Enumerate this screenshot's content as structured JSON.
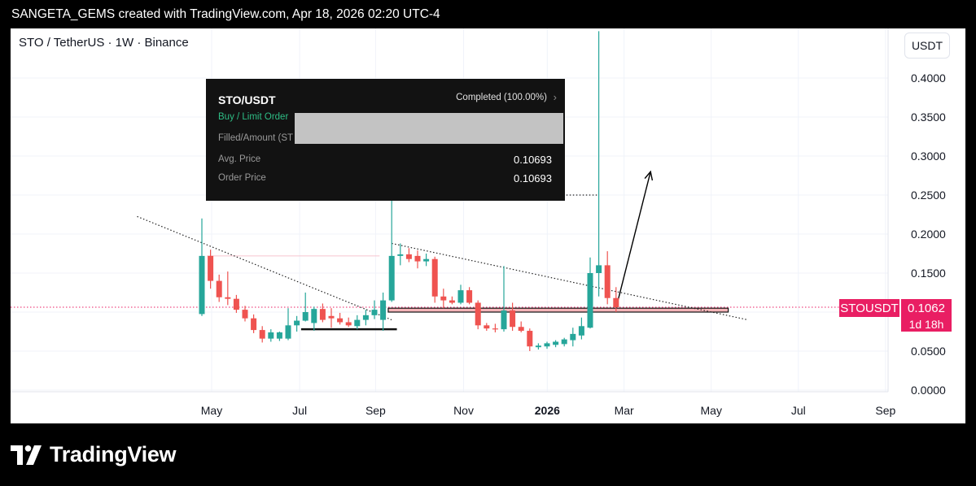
{
  "header": {
    "caption": "SANGETA_GEMS created with TradingView.com, Apr 18, 2026 02:20 UTC-4"
  },
  "chart": {
    "symbol_title": "STO / TetherUS · 1W · Binance",
    "currency_button": "USDT",
    "ticker_tag": "STOUSDT",
    "price_tag": "0.1062",
    "countdown": "1d 18h"
  },
  "order_panel": {
    "pair": "STO/USDT",
    "status": "Completed (100.00%)",
    "side": "Buy / Limit Order",
    "filled_label": "Filled/Amount (ST",
    "avg_price_label": "Avg. Price",
    "avg_price_value": "0.10693",
    "order_price_label": "Order Price",
    "order_price_value": "0.10693"
  },
  "branding": {
    "logo_text": "TradingView",
    "logo_icon": "tradingview-logo-icon"
  },
  "colors": {
    "up": "#26a69a",
    "down": "#ef5350",
    "accent": "#e91e63",
    "support_zone": "#f4b4b8",
    "background": "#ffffff"
  },
  "chart_data": {
    "type": "candlestick",
    "interval": "1W",
    "ylim": [
      0,
      0.4
    ],
    "y_ticks": [
      "0.0000",
      "0.0500",
      "0.1000",
      "0.1500",
      "0.2000",
      "0.2500",
      "0.3000",
      "0.3500",
      "0.4000"
    ],
    "x_ticks": [
      "May",
      "Jul",
      "Sep",
      "Nov",
      "2026",
      "Mar",
      "May",
      "Jul",
      "Sep"
    ],
    "last_price": 0.1062,
    "grid": true,
    "candles": [
      {
        "o": 0.0975,
        "h": 0.22,
        "l": 0.095,
        "c": 0.172
      },
      {
        "o": 0.172,
        "h": 0.18,
        "l": 0.13,
        "c": 0.14
      },
      {
        "o": 0.14,
        "h": 0.148,
        "l": 0.113,
        "c": 0.119
      },
      {
        "o": 0.119,
        "h": 0.152,
        "l": 0.109,
        "c": 0.117
      },
      {
        "o": 0.117,
        "h": 0.122,
        "l": 0.099,
        "c": 0.103
      },
      {
        "o": 0.103,
        "h": 0.108,
        "l": 0.088,
        "c": 0.092
      },
      {
        "o": 0.092,
        "h": 0.097,
        "l": 0.073,
        "c": 0.077
      },
      {
        "o": 0.077,
        "h": 0.082,
        "l": 0.061,
        "c": 0.066
      },
      {
        "o": 0.066,
        "h": 0.078,
        "l": 0.062,
        "c": 0.074
      },
      {
        "o": 0.066,
        "h": 0.075,
        "l": 0.063,
        "c": 0.074
      },
      {
        "o": 0.066,
        "h": 0.105,
        "l": 0.064,
        "c": 0.083
      },
      {
        "o": 0.083,
        "h": 0.095,
        "l": 0.075,
        "c": 0.089
      },
      {
        "o": 0.089,
        "h": 0.125,
        "l": 0.088,
        "c": 0.1
      },
      {
        "o": 0.086,
        "h": 0.107,
        "l": 0.076,
        "c": 0.104
      },
      {
        "o": 0.104,
        "h": 0.111,
        "l": 0.087,
        "c": 0.09
      },
      {
        "o": 0.095,
        "h": 0.105,
        "l": 0.08,
        "c": 0.092
      },
      {
        "o": 0.092,
        "h": 0.099,
        "l": 0.084,
        "c": 0.087
      },
      {
        "o": 0.087,
        "h": 0.093,
        "l": 0.081,
        "c": 0.083
      },
      {
        "o": 0.082,
        "h": 0.096,
        "l": 0.078,
        "c": 0.09
      },
      {
        "o": 0.09,
        "h": 0.103,
        "l": 0.083,
        "c": 0.096
      },
      {
        "o": 0.096,
        "h": 0.115,
        "l": 0.091,
        "c": 0.103
      },
      {
        "o": 0.09,
        "h": 0.125,
        "l": 0.076,
        "c": 0.115
      },
      {
        "o": 0.115,
        "h": 0.25,
        "l": 0.113,
        "c": 0.172
      },
      {
        "o": 0.172,
        "h": 0.188,
        "l": 0.16,
        "c": 0.174
      },
      {
        "o": 0.174,
        "h": 0.182,
        "l": 0.164,
        "c": 0.168
      },
      {
        "o": 0.172,
        "h": 0.179,
        "l": 0.156,
        "c": 0.165
      },
      {
        "o": 0.165,
        "h": 0.175,
        "l": 0.159,
        "c": 0.168
      },
      {
        "o": 0.168,
        "h": 0.171,
        "l": 0.112,
        "c": 0.12
      },
      {
        "o": 0.12,
        "h": 0.13,
        "l": 0.105,
        "c": 0.115
      },
      {
        "o": 0.115,
        "h": 0.12,
        "l": 0.11,
        "c": 0.112
      },
      {
        "o": 0.112,
        "h": 0.135,
        "l": 0.11,
        "c": 0.128
      },
      {
        "o": 0.128,
        "h": 0.132,
        "l": 0.11,
        "c": 0.112
      },
      {
        "o": 0.112,
        "h": 0.115,
        "l": 0.078,
        "c": 0.083
      },
      {
        "o": 0.083,
        "h": 0.086,
        "l": 0.076,
        "c": 0.079
      },
      {
        "o": 0.079,
        "h": 0.085,
        "l": 0.074,
        "c": 0.078
      },
      {
        "o": 0.078,
        "h": 0.159,
        "l": 0.075,
        "c": 0.102
      },
      {
        "o": 0.102,
        "h": 0.112,
        "l": 0.076,
        "c": 0.081
      },
      {
        "o": 0.081,
        "h": 0.088,
        "l": 0.074,
        "c": 0.076
      },
      {
        "o": 0.076,
        "h": 0.079,
        "l": 0.05,
        "c": 0.056
      },
      {
        "o": 0.055,
        "h": 0.06,
        "l": 0.052,
        "c": 0.057
      },
      {
        "o": 0.056,
        "h": 0.062,
        "l": 0.053,
        "c": 0.06
      },
      {
        "o": 0.058,
        "h": 0.064,
        "l": 0.055,
        "c": 0.062
      },
      {
        "o": 0.059,
        "h": 0.067,
        "l": 0.056,
        "c": 0.065
      },
      {
        "o": 0.064,
        "h": 0.08,
        "l": 0.056,
        "c": 0.072
      },
      {
        "o": 0.07,
        "h": 0.093,
        "l": 0.065,
        "c": 0.082
      },
      {
        "o": 0.08,
        "h": 0.17,
        "l": 0.079,
        "c": 0.15
      },
      {
        "o": 0.15,
        "h": 0.46,
        "l": 0.12,
        "c": 0.16
      },
      {
        "o": 0.16,
        "h": 0.178,
        "l": 0.11,
        "c": 0.118
      },
      {
        "o": 0.118,
        "h": 0.132,
        "l": 0.1,
        "c": 0.1062
      }
    ],
    "support_zone": [
      0.1,
      0.105
    ],
    "levels": [
      {
        "style": "solid",
        "value": 0.078
      },
      {
        "style": "dotted",
        "value": 0.25
      },
      {
        "style": "dotted",
        "value": 0.1062
      },
      {
        "style": "faint",
        "value": 0.172
      }
    ],
    "trendlines": [
      {
        "style": "dotted",
        "from": [
          0,
          0.22
        ],
        "to": [
          23,
          0.09
        ]
      },
      {
        "style": "dotted",
        "from": [
          22,
          0.188
        ],
        "to": [
          51,
          0.09
        ]
      }
    ],
    "projection_arrow": {
      "from": [
        48,
        0.105
      ],
      "to": [
        52,
        0.28
      ]
    }
  }
}
